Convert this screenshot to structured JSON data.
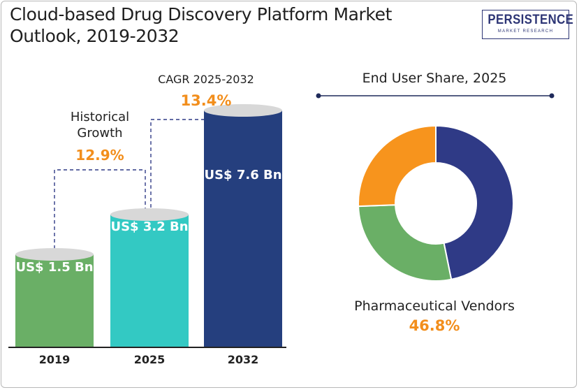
{
  "header": {
    "title": "Cloud-based Drug Discovery Platform Market Outlook, 2019-2032",
    "logo_main": "PERSISTENCE",
    "logo_sub": "MARKET RESEARCH"
  },
  "chart_data": [
    {
      "type": "bar",
      "categories": [
        "2019",
        "2025",
        "2032"
      ],
      "values": [
        1.5,
        3.2,
        7.6
      ],
      "value_labels": [
        "US$ 1.5 Bn",
        "US$ 3.2 Bn",
        "US$ 7.6 Bn"
      ],
      "colors": [
        "#6aaf66",
        "#33c9c3",
        "#253f7e"
      ],
      "annotations": {
        "historical_label": "Historical Growth",
        "historical_value": "12.9%",
        "cagr_label": "CAGR 2025-2032",
        "cagr_value": "13.4%"
      }
    },
    {
      "type": "pie",
      "title": "End User Share, 2025",
      "slices": [
        {
          "label": "Pharmaceutical Vendors",
          "value": 46.8,
          "color": "#2f3a86"
        },
        {
          "label": "",
          "value": 27.6,
          "color": "#6aaf66"
        },
        {
          "label": "",
          "value": 25.6,
          "color": "#f7941d"
        }
      ],
      "highlight_label": "Pharmaceutical Vendors",
      "highlight_value": "46.8%"
    }
  ]
}
